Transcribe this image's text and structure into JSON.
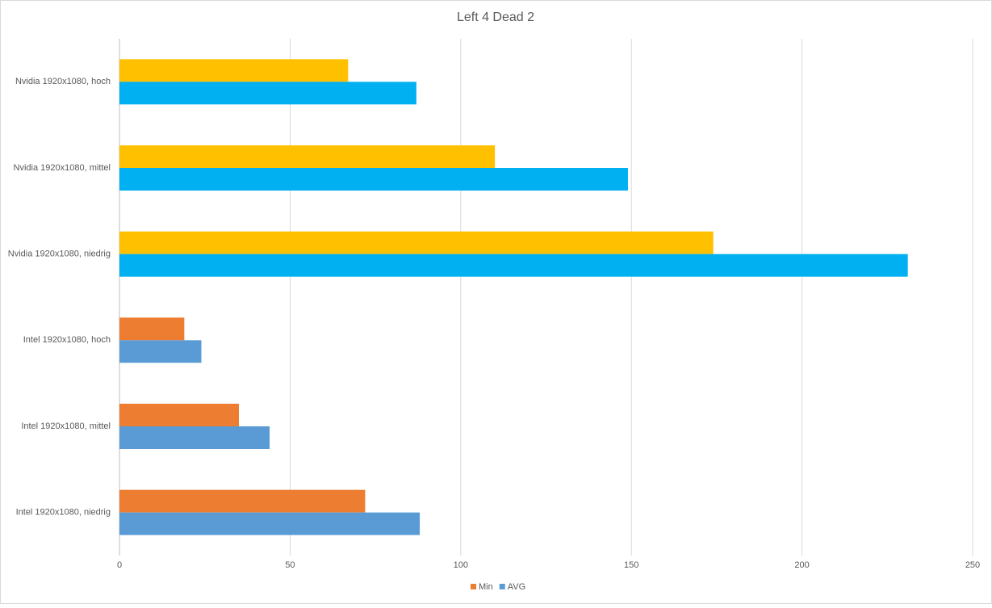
{
  "chart_data": {
    "type": "hbar",
    "title": "Left 4 Dead 2",
    "categories": [
      "Nvidia 1920x1080, hoch",
      "Nvidia 1920x1080, mittel",
      "Nvidia 1920x1080, niedrig",
      "Intel 1920x1080, hoch",
      "Intel 1920x1080, mittel",
      "Intel 1920x1080, niedrig"
    ],
    "series": [
      {
        "name": "Min",
        "color": "#ed7d31",
        "colors": [
          "#ffc000",
          "#ffc000",
          "#ffc000",
          "#ed7d31",
          "#ed7d31",
          "#ed7d31"
        ],
        "values": [
          67,
          110,
          174,
          19,
          35,
          72
        ]
      },
      {
        "name": "AVG",
        "color": "#5b9bd5",
        "colors": [
          "#00b0f0",
          "#00b0f0",
          "#00b0f0",
          "#5b9bd5",
          "#5b9bd5",
          "#5b9bd5"
        ],
        "values": [
          87,
          149,
          231,
          24,
          44,
          88
        ]
      }
    ],
    "xlim": [
      0,
      250
    ],
    "xticks": [
      0,
      50,
      100,
      150,
      200,
      250
    ],
    "grid": true,
    "legend": "bottom"
  }
}
